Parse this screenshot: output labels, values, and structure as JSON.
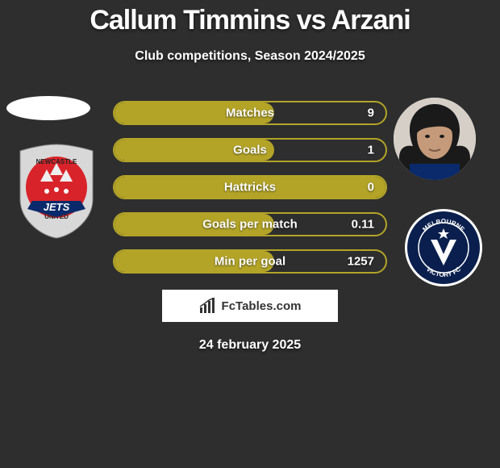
{
  "title": {
    "text": "Callum Timmins vs Arzani",
    "fontsize": 34
  },
  "subtitle": {
    "text": "Club competitions, Season 2024/2025",
    "fontsize": 16
  },
  "date": {
    "text": "24 february 2025",
    "fontsize": 16
  },
  "colors": {
    "background": "#2e2e2e",
    "bar_border": "#b3a428",
    "bar_fill": "#b3a428",
    "text": "#ffffff"
  },
  "watermark": {
    "text": "FcTables.com"
  },
  "bars": [
    {
      "label": "Matches",
      "value": "9",
      "fill_pct": 59
    },
    {
      "label": "Goals",
      "value": "1",
      "fill_pct": 59
    },
    {
      "label": "Hattricks",
      "value": "0",
      "fill_pct": 100
    },
    {
      "label": "Goals per match",
      "value": "0.11",
      "fill_pct": 59
    },
    {
      "label": "Min per goal",
      "value": "1257",
      "fill_pct": 59
    }
  ],
  "left_badge": {
    "name": "Newcastle United Jets",
    "shield_bg": "#d8d8d8",
    "circle_bg": "#d9232a",
    "banner_bg": "#0a2a6b",
    "banner_text": "JETS",
    "top_text": "NEWCASTLE",
    "bottom_text": "UNITED"
  },
  "right_badge": {
    "name": "Melbourne Victory FC",
    "circle_border": "#ffffff",
    "circle_bg": "#0a1f4d",
    "inner_text_top": "MELBOURNE",
    "inner_text_bottom": "VICTORY FC"
  }
}
